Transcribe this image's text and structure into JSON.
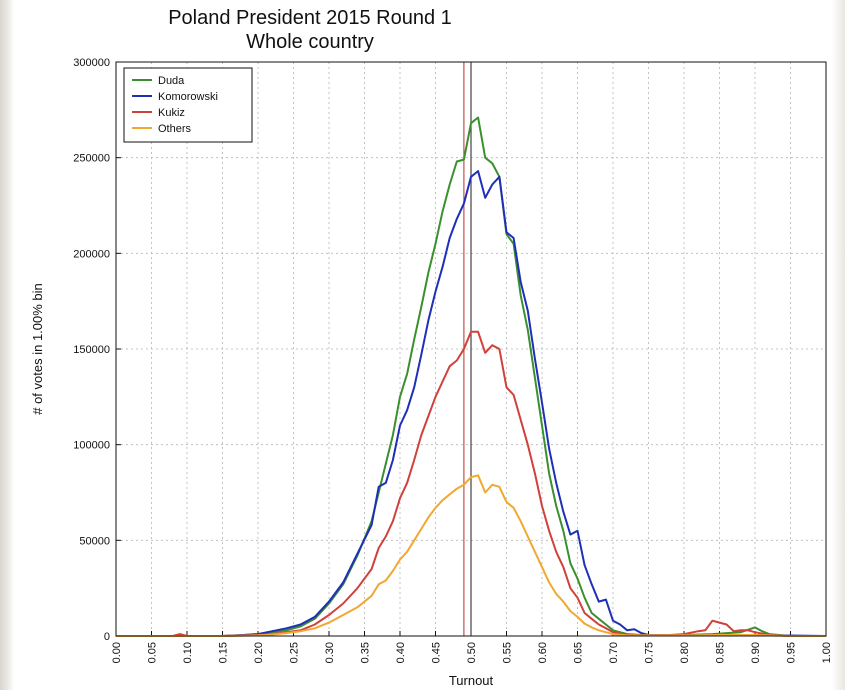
{
  "chart_data": {
    "type": "line",
    "title": "Poland President 2015 Round 1",
    "subtitle": "Whole country",
    "xlabel": "Turnout",
    "ylabel": "# of votes in 1.00% bin",
    "xlim": [
      0,
      1
    ],
    "ylim": [
      0,
      300000
    ],
    "x_ticks": [
      "0.00",
      "0.05",
      "0.10",
      "0.15",
      "0.20",
      "0.25",
      "0.30",
      "0.35",
      "0.40",
      "0.45",
      "0.50",
      "0.55",
      "0.60",
      "0.65",
      "0.70",
      "0.75",
      "0.80",
      "0.85",
      "0.90",
      "0.95",
      "1.00"
    ],
    "y_ticks": [
      "0",
      "50000",
      "100000",
      "150000",
      "200000",
      "250000",
      "300000"
    ],
    "grid": true,
    "legend_position": "top-left",
    "vertical_lines": [
      {
        "x": 0.49,
        "color": "#c0504d"
      },
      {
        "x": 0.5,
        "color": "#444444"
      }
    ],
    "series": [
      {
        "name": "Duda",
        "color": "#3a8f2e",
        "points": [
          [
            0,
            0
          ],
          [
            0.1,
            0
          ],
          [
            0.15,
            0
          ],
          [
            0.18,
            500
          ],
          [
            0.2,
            1000
          ],
          [
            0.22,
            2000
          ],
          [
            0.24,
            3000
          ],
          [
            0.26,
            5000
          ],
          [
            0.28,
            9000
          ],
          [
            0.3,
            17000
          ],
          [
            0.32,
            27000
          ],
          [
            0.34,
            42000
          ],
          [
            0.36,
            60000
          ],
          [
            0.37,
            75000
          ],
          [
            0.38,
            90000
          ],
          [
            0.39,
            105000
          ],
          [
            0.4,
            125000
          ],
          [
            0.41,
            137000
          ],
          [
            0.42,
            155000
          ],
          [
            0.43,
            172000
          ],
          [
            0.44,
            190000
          ],
          [
            0.45,
            205000
          ],
          [
            0.46,
            222000
          ],
          [
            0.47,
            236000
          ],
          [
            0.48,
            248000
          ],
          [
            0.49,
            249000
          ],
          [
            0.5,
            268000
          ],
          [
            0.51,
            271000
          ],
          [
            0.52,
            250000
          ],
          [
            0.53,
            247000
          ],
          [
            0.54,
            240000
          ],
          [
            0.55,
            210000
          ],
          [
            0.56,
            205000
          ],
          [
            0.57,
            178000
          ],
          [
            0.58,
            160000
          ],
          [
            0.59,
            135000
          ],
          [
            0.6,
            110000
          ],
          [
            0.61,
            85000
          ],
          [
            0.62,
            68000
          ],
          [
            0.63,
            55000
          ],
          [
            0.64,
            38000
          ],
          [
            0.65,
            30000
          ],
          [
            0.66,
            20000
          ],
          [
            0.67,
            12000
          ],
          [
            0.68,
            9000
          ],
          [
            0.69,
            6000
          ],
          [
            0.7,
            3000
          ],
          [
            0.72,
            1000
          ],
          [
            0.75,
            300
          ],
          [
            0.8,
            500
          ],
          [
            0.84,
            1000
          ],
          [
            0.86,
            1500
          ],
          [
            0.88,
            2000
          ],
          [
            0.9,
            4500
          ],
          [
            0.91,
            2500
          ],
          [
            0.92,
            1000
          ],
          [
            0.95,
            0
          ],
          [
            1.0,
            0
          ]
        ]
      },
      {
        "name": "Komorowski",
        "color": "#1f2fb8",
        "points": [
          [
            0,
            0
          ],
          [
            0.1,
            0
          ],
          [
            0.15,
            0
          ],
          [
            0.18,
            500
          ],
          [
            0.2,
            1000
          ],
          [
            0.22,
            2500
          ],
          [
            0.24,
            4000
          ],
          [
            0.26,
            6000
          ],
          [
            0.28,
            10000
          ],
          [
            0.3,
            18000
          ],
          [
            0.32,
            28000
          ],
          [
            0.34,
            43000
          ],
          [
            0.36,
            58000
          ],
          [
            0.37,
            78000
          ],
          [
            0.38,
            80000
          ],
          [
            0.39,
            92000
          ],
          [
            0.4,
            110000
          ],
          [
            0.41,
            118000
          ],
          [
            0.42,
            130000
          ],
          [
            0.43,
            147000
          ],
          [
            0.44,
            165000
          ],
          [
            0.45,
            180000
          ],
          [
            0.46,
            193000
          ],
          [
            0.47,
            208000
          ],
          [
            0.48,
            218000
          ],
          [
            0.49,
            226000
          ],
          [
            0.5,
            240000
          ],
          [
            0.51,
            243000
          ],
          [
            0.52,
            229000
          ],
          [
            0.53,
            236000
          ],
          [
            0.54,
            240000
          ],
          [
            0.55,
            211000
          ],
          [
            0.56,
            208000
          ],
          [
            0.57,
            185000
          ],
          [
            0.58,
            170000
          ],
          [
            0.59,
            145000
          ],
          [
            0.6,
            122000
          ],
          [
            0.61,
            98000
          ],
          [
            0.62,
            80000
          ],
          [
            0.63,
            65000
          ],
          [
            0.64,
            53000
          ],
          [
            0.65,
            55000
          ],
          [
            0.66,
            37000
          ],
          [
            0.67,
            27000
          ],
          [
            0.68,
            18000
          ],
          [
            0.69,
            19000
          ],
          [
            0.7,
            8000
          ],
          [
            0.71,
            6000
          ],
          [
            0.72,
            3000
          ],
          [
            0.73,
            3500
          ],
          [
            0.74,
            1500
          ],
          [
            0.75,
            500
          ],
          [
            0.8,
            300
          ],
          [
            0.85,
            300
          ],
          [
            0.9,
            500
          ],
          [
            1.0,
            0
          ]
        ]
      },
      {
        "name": "Kukiz",
        "color": "#d0413b",
        "points": [
          [
            0,
            0
          ],
          [
            0.08,
            0
          ],
          [
            0.09,
            1000
          ],
          [
            0.1,
            0
          ],
          [
            0.15,
            0
          ],
          [
            0.2,
            500
          ],
          [
            0.22,
            1000
          ],
          [
            0.24,
            2000
          ],
          [
            0.26,
            3000
          ],
          [
            0.28,
            6000
          ],
          [
            0.3,
            11000
          ],
          [
            0.32,
            17000
          ],
          [
            0.34,
            25000
          ],
          [
            0.36,
            35000
          ],
          [
            0.37,
            46000
          ],
          [
            0.38,
            52000
          ],
          [
            0.39,
            60000
          ],
          [
            0.4,
            72000
          ],
          [
            0.41,
            80000
          ],
          [
            0.42,
            92000
          ],
          [
            0.43,
            105000
          ],
          [
            0.44,
            115000
          ],
          [
            0.45,
            125000
          ],
          [
            0.46,
            133000
          ],
          [
            0.47,
            141000
          ],
          [
            0.48,
            144000
          ],
          [
            0.49,
            150000
          ],
          [
            0.5,
            159000
          ],
          [
            0.51,
            159000
          ],
          [
            0.52,
            148000
          ],
          [
            0.53,
            152000
          ],
          [
            0.54,
            150000
          ],
          [
            0.55,
            130000
          ],
          [
            0.56,
            126000
          ],
          [
            0.57,
            113000
          ],
          [
            0.58,
            100000
          ],
          [
            0.59,
            85000
          ],
          [
            0.6,
            68000
          ],
          [
            0.61,
            55000
          ],
          [
            0.62,
            44000
          ],
          [
            0.63,
            36000
          ],
          [
            0.64,
            25000
          ],
          [
            0.65,
            20000
          ],
          [
            0.66,
            12000
          ],
          [
            0.67,
            9000
          ],
          [
            0.68,
            6000
          ],
          [
            0.69,
            4000
          ],
          [
            0.7,
            2000
          ],
          [
            0.72,
            500
          ],
          [
            0.75,
            300
          ],
          [
            0.78,
            500
          ],
          [
            0.8,
            1000
          ],
          [
            0.82,
            2500
          ],
          [
            0.83,
            3000
          ],
          [
            0.84,
            8000
          ],
          [
            0.85,
            7000
          ],
          [
            0.86,
            6000
          ],
          [
            0.87,
            2500
          ],
          [
            0.88,
            3000
          ],
          [
            0.89,
            3000
          ],
          [
            0.9,
            2000
          ],
          [
            0.92,
            500
          ],
          [
            0.95,
            0
          ],
          [
            1.0,
            0
          ]
        ]
      },
      {
        "name": "Others",
        "color": "#f0a830",
        "points": [
          [
            0,
            0
          ],
          [
            0.15,
            0
          ],
          [
            0.2,
            300
          ],
          [
            0.22,
            800
          ],
          [
            0.24,
            1500
          ],
          [
            0.26,
            2500
          ],
          [
            0.28,
            4000
          ],
          [
            0.3,
            7000
          ],
          [
            0.32,
            11000
          ],
          [
            0.34,
            15000
          ],
          [
            0.36,
            21000
          ],
          [
            0.37,
            27000
          ],
          [
            0.38,
            29000
          ],
          [
            0.39,
            34000
          ],
          [
            0.4,
            40000
          ],
          [
            0.41,
            44000
          ],
          [
            0.42,
            50000
          ],
          [
            0.43,
            56000
          ],
          [
            0.44,
            62000
          ],
          [
            0.45,
            67000
          ],
          [
            0.46,
            71000
          ],
          [
            0.47,
            74000
          ],
          [
            0.48,
            77000
          ],
          [
            0.49,
            79000
          ],
          [
            0.5,
            83000
          ],
          [
            0.51,
            84000
          ],
          [
            0.52,
            75000
          ],
          [
            0.53,
            79000
          ],
          [
            0.54,
            78000
          ],
          [
            0.55,
            70000
          ],
          [
            0.56,
            67000
          ],
          [
            0.57,
            60000
          ],
          [
            0.58,
            52000
          ],
          [
            0.59,
            44000
          ],
          [
            0.6,
            36000
          ],
          [
            0.61,
            28000
          ],
          [
            0.62,
            22000
          ],
          [
            0.63,
            18000
          ],
          [
            0.64,
            13000
          ],
          [
            0.65,
            10000
          ],
          [
            0.66,
            6500
          ],
          [
            0.67,
            4500
          ],
          [
            0.68,
            3000
          ],
          [
            0.69,
            2000
          ],
          [
            0.7,
            1000
          ],
          [
            0.72,
            300
          ],
          [
            0.8,
            300
          ],
          [
            0.85,
            500
          ],
          [
            0.9,
            500
          ],
          [
            0.95,
            0
          ],
          [
            1.0,
            0
          ]
        ]
      }
    ]
  }
}
